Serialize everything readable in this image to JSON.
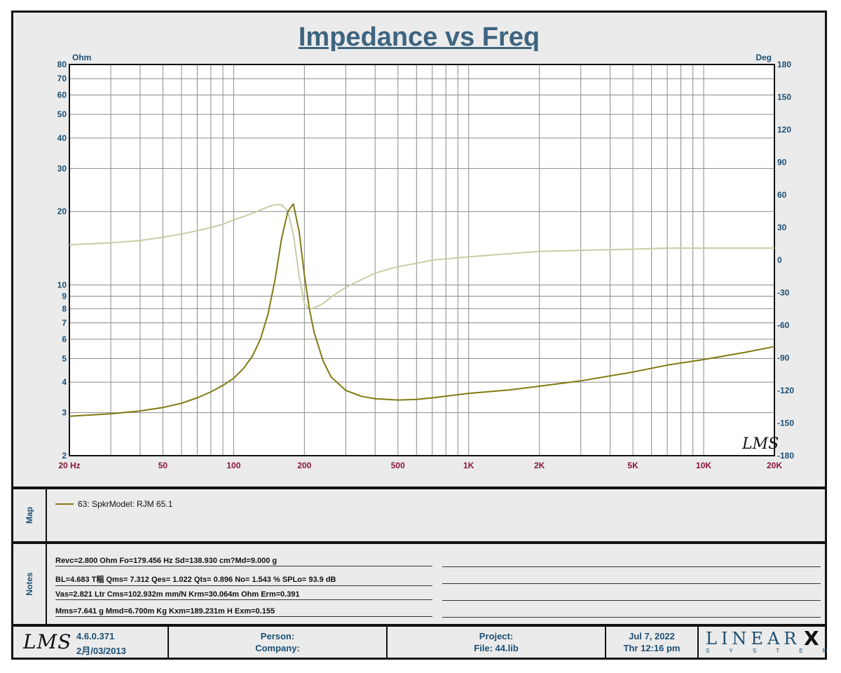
{
  "chart_data": {
    "type": "line",
    "title": "Impedance vs Freq",
    "y_left_unit": "Ohm",
    "y_right_unit": "Deg",
    "x_scale": "log",
    "y_left_scale": "log",
    "xlim": [
      20,
      20000
    ],
    "ylim_left": [
      2,
      80
    ],
    "ylim_right": [
      -180,
      180
    ],
    "grid": true,
    "x_ticks": [
      {
        "value": 20,
        "label": "20  Hz"
      },
      {
        "value": 50,
        "label": "50"
      },
      {
        "value": 100,
        "label": "100"
      },
      {
        "value": 200,
        "label": "200"
      },
      {
        "value": 500,
        "label": "500"
      },
      {
        "value": 1000,
        "label": "1K"
      },
      {
        "value": 2000,
        "label": "2K"
      },
      {
        "value": 5000,
        "label": "5K"
      },
      {
        "value": 10000,
        "label": "10K"
      },
      {
        "value": 20000,
        "label": "20K"
      }
    ],
    "y_left_ticks": [
      {
        "value": 2,
        "label": "2"
      },
      {
        "value": 3,
        "label": "3"
      },
      {
        "value": 4,
        "label": "4"
      },
      {
        "value": 5,
        "label": "5"
      },
      {
        "value": 6,
        "label": "6"
      },
      {
        "value": 7,
        "label": "7"
      },
      {
        "value": 8,
        "label": "8"
      },
      {
        "value": 9,
        "label": "9"
      },
      {
        "value": 10,
        "label": "10"
      },
      {
        "value": 20,
        "label": "20"
      },
      {
        "value": 30,
        "label": "30"
      },
      {
        "value": 40,
        "label": "40"
      },
      {
        "value": 50,
        "label": "50"
      },
      {
        "value": 60,
        "label": "60"
      },
      {
        "value": 70,
        "label": "70"
      },
      {
        "value": 80,
        "label": "80"
      }
    ],
    "y_right_ticks": [
      {
        "value": 180,
        "label": "180"
      },
      {
        "value": 150,
        "label": "150"
      },
      {
        "value": 120,
        "label": "120"
      },
      {
        "value": 90,
        "label": "90"
      },
      {
        "value": 60,
        "label": "60"
      },
      {
        "value": 30,
        "label": "30"
      },
      {
        "value": 0,
        "label": "0"
      },
      {
        "value": -30,
        "label": "-30"
      },
      {
        "value": -60,
        "label": "-60"
      },
      {
        "value": -90,
        "label": "-90"
      },
      {
        "value": -120,
        "label": "-120"
      },
      {
        "value": -150,
        "label": "-150"
      },
      {
        "value": -180,
        "label": "-180"
      }
    ],
    "series": [
      {
        "name": "63: SpkrModel: RJM 65.1",
        "axis": "left",
        "color": "#807a10",
        "x": [
          20,
          30,
          40,
          50,
          60,
          70,
          80,
          90,
          100,
          110,
          120,
          130,
          140,
          150,
          160,
          170,
          179.5,
          190,
          200,
          210,
          220,
          240,
          260,
          300,
          350,
          400,
          500,
          600,
          700,
          1000,
          1500,
          2000,
          3000,
          5000,
          7000,
          10000,
          15000,
          20000
        ],
        "y": [
          2.9,
          2.97,
          3.05,
          3.15,
          3.28,
          3.45,
          3.65,
          3.88,
          4.15,
          4.55,
          5.1,
          6.0,
          7.6,
          10.5,
          15.5,
          20.0,
          21.5,
          16.5,
          11.0,
          8.0,
          6.4,
          4.9,
          4.2,
          3.7,
          3.5,
          3.42,
          3.38,
          3.4,
          3.45,
          3.6,
          3.72,
          3.85,
          4.05,
          4.4,
          4.7,
          4.95,
          5.3,
          5.6
        ]
      },
      {
        "name": "",
        "axis": "right",
        "color": "#c9cca6",
        "x": [
          20,
          30,
          40,
          50,
          60,
          70,
          80,
          90,
          100,
          110,
          120,
          130,
          140,
          150,
          160,
          170,
          180,
          190,
          200,
          210,
          220,
          240,
          260,
          300,
          350,
          400,
          500,
          600,
          700,
          1000,
          1500,
          2000,
          3000,
          5000,
          7000,
          10000,
          15000,
          20000
        ],
        "y": [
          14,
          16,
          18,
          21,
          24,
          27,
          30,
          33,
          37,
          40,
          43,
          46,
          49,
          51,
          51,
          45,
          22,
          -15,
          -40,
          -45,
          -44,
          -40,
          -34,
          -25,
          -18,
          -12,
          -6,
          -3,
          0,
          3,
          6,
          8,
          9,
          10,
          11,
          11,
          11,
          11
        ]
      }
    ]
  },
  "map_panel": {
    "label": "Map"
  },
  "notes_panel": {
    "label": "Notes",
    "lines": [
      "Revc=2.800 Ohm  Fo=179.456 Hz  Sd=138.930 cm?Md=9.000 g",
      "BL=4.683 T稲  Qms= 7.312  Qes= 1.022  Qts= 0.896  No= 1.543 %  SPLo= 93.9 dB",
      "Vas=2.821 Ltr  Cms=102.932m mm/N  Krm=30.064m Ohm  Erm=0.391",
      "Mms=7.641 g  Mmd=6.700m Kg  Kxm=189.231m H  Exm=0.155"
    ]
  },
  "footer": {
    "version": "4.6.0.371",
    "build_date": "2月/03/2013",
    "person_label": "Person:",
    "company_label": "Company:",
    "project_label": "Project:",
    "file_label": "File: 44.lib",
    "date": "Jul  7, 2022",
    "time": "Thr 12:16 pm",
    "brand_name": "LINEAR",
    "brand_mark": "X",
    "brand_sub": "S Y S T E M S",
    "app_logo": "LMS"
  },
  "colors": {
    "impedance": "#807a10",
    "phase": "#c9cca6",
    "axis_label": "#1c4f74",
    "x_tick_label": "#8a1538",
    "title": "#3e6480"
  }
}
